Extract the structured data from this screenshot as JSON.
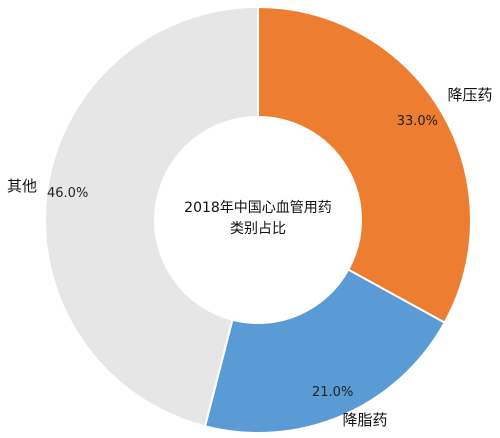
{
  "chart_data": {
    "type": "pie",
    "donut": true,
    "title_lines": [
      "2018年中国心血管用药",
      "类别占比"
    ],
    "slices": [
      {
        "label": "降压药",
        "value": 33.0,
        "value_text": "33.0%",
        "color": "#ED7D31"
      },
      {
        "label": "降脂药",
        "value": 21.0,
        "value_text": "21.0%",
        "color": "#5B9BD5"
      },
      {
        "label": "其他",
        "value": 46.0,
        "value_text": "46.0%",
        "color": "#E7E6E6"
      }
    ],
    "start_angle_deg": 0,
    "direction": "clockwise"
  }
}
